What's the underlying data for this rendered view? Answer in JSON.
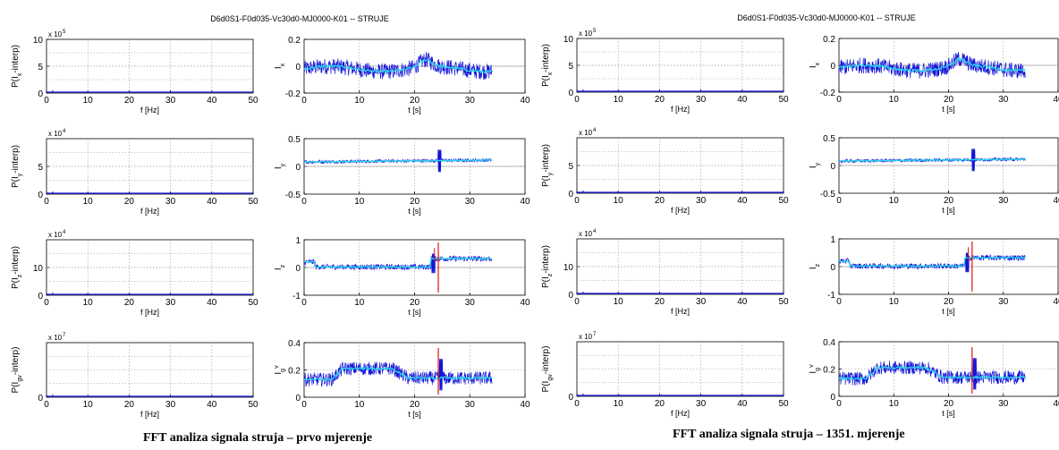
{
  "figures": [
    {
      "title": "D6d0S1-F0d035-Vc30d0-MJ0000-K01 -- STRUJE",
      "caption": "FFT analiza signala struja – prvo mjerenje"
    },
    {
      "title": "D6d0S1-F0d035-Vc30d0-MJ0000-K01 -- STRUJE",
      "caption": "FFT analiza signala struja – 1351. mjerenje"
    }
  ],
  "colors": {
    "signal": "#1414d8",
    "filtered": "#2ad4e8",
    "marker": "#e01010",
    "zero_line": "#808080",
    "fft_line": "#1414d8"
  },
  "chart_data": [
    {
      "type": "line",
      "panel": "fft-x",
      "xlabel": "f [Hz]",
      "ylabel": "P(I_x-interp)",
      "xlim": [
        0,
        50
      ],
      "ylim": [
        0,
        10
      ],
      "xticks": [
        0,
        10,
        20,
        30,
        40,
        50
      ],
      "yticks": [
        0,
        5,
        10
      ],
      "exponent_label": "x 10",
      "exponent_value": "5",
      "grid": true
    },
    {
      "type": "line",
      "panel": "time-x",
      "xlabel": "t [s]",
      "ylabel": "I_x",
      "xlim": [
        0,
        40
      ],
      "ylim": [
        -0.2,
        0.2
      ],
      "xticks": [
        0,
        10,
        20,
        30,
        40
      ],
      "yticks": [
        "-0.2",
        "0",
        "0.2"
      ],
      "grid": true
    },
    {
      "type": "line",
      "panel": "fft-y",
      "xlabel": "f [Hz]",
      "ylabel": "P(I_y-interp)",
      "xlim": [
        0,
        50
      ],
      "ylim": [
        0,
        10
      ],
      "xticks": [
        0,
        10,
        20,
        30,
        40,
        50
      ],
      "yticks": [
        0,
        5
      ],
      "exponent_label": "x 10",
      "exponent_value": "4",
      "grid": true
    },
    {
      "type": "line",
      "panel": "time-y",
      "xlabel": "t [s]",
      "ylabel": "I_y",
      "xlim": [
        0,
        40
      ],
      "ylim": [
        -0.5,
        0.5
      ],
      "xticks": [
        0,
        10,
        20,
        30,
        40
      ],
      "yticks": [
        "-0.5",
        "0",
        "0.5"
      ],
      "grid": true
    },
    {
      "type": "line",
      "panel": "fft-z",
      "xlabel": "f [Hz]",
      "ylabel": "P(I_z-interp)",
      "xlim": [
        0,
        50
      ],
      "ylim": [
        0,
        20
      ],
      "xticks": [
        0,
        10,
        20,
        30,
        40,
        50
      ],
      "yticks": [
        0,
        10
      ],
      "exponent_label": "x 10",
      "exponent_value": "4",
      "grid": true
    },
    {
      "type": "line",
      "panel": "time-z",
      "xlabel": "t [s]",
      "ylabel": "I_z",
      "xlim": [
        0,
        40
      ],
      "ylim": [
        -1,
        1
      ],
      "xticks": [
        0,
        10,
        20,
        30,
        40
      ],
      "yticks": [
        "-1",
        "0",
        "1"
      ],
      "grid": true
    },
    {
      "type": "line",
      "panel": "fft-gv",
      "xlabel": "f [Hz]",
      "ylabel": "P(I_gv-interp)",
      "xlim": [
        0,
        50
      ],
      "ylim": [
        0,
        3
      ],
      "xticks": [
        0,
        10,
        20,
        30,
        40,
        50
      ],
      "yticks": [
        0
      ],
      "exponent_label": "x 10",
      "exponent_value": "7",
      "grid": true
    },
    {
      "type": "line",
      "panel": "time-gv",
      "xlabel": "t [s]",
      "ylabel": "I_g^v",
      "xlim": [
        0,
        40
      ],
      "ylim": [
        0,
        0.4
      ],
      "xticks": [
        0,
        10,
        20,
        30,
        40
      ],
      "yticks": [
        "0",
        "0.2",
        "0.4"
      ],
      "grid": true
    }
  ]
}
